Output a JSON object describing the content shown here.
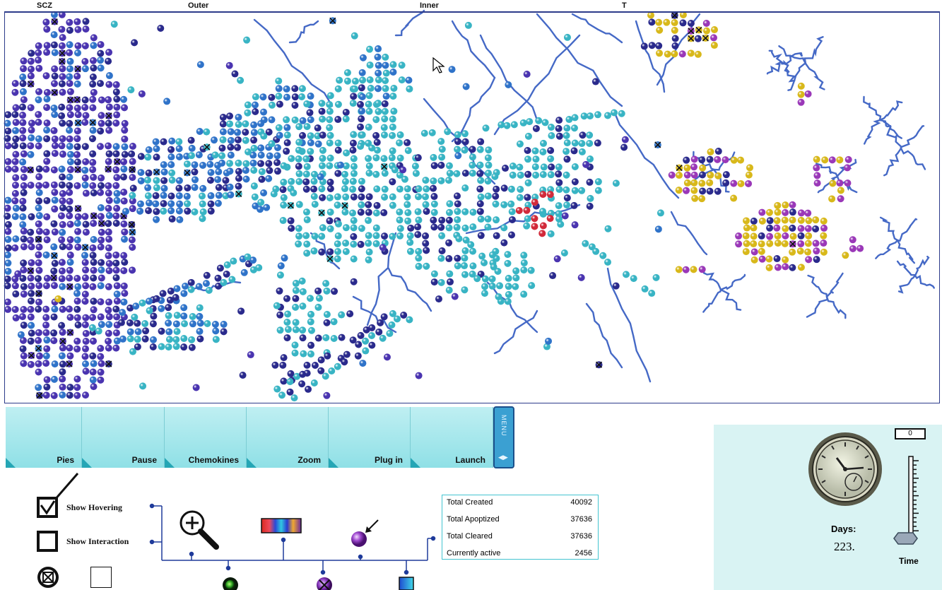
{
  "zones": {
    "scz": "SCZ",
    "outer": "Outer",
    "inner": "Inner",
    "t": "T"
  },
  "toolbar": {
    "buttons": [
      "Pies",
      "Pause",
      "Chemokines",
      "Zoom",
      "Plug in",
      "Launch"
    ],
    "menu_label": "MENU",
    "menu_arrows": "◀▶"
  },
  "options": {
    "show_hovering": "Show Hovering",
    "show_interaction": "Show Interaction"
  },
  "stats": {
    "rows": [
      {
        "label": "Total Created",
        "value": "40092"
      },
      {
        "label": "Total Apoptized",
        "value": "37636"
      },
      {
        "label": "Total Cleared",
        "value": "37636"
      },
      {
        "label": "Currently active",
        "value": "2456"
      }
    ]
  },
  "clock": {
    "days_label": "Days:",
    "days_value": "223.",
    "time_label": "Time",
    "time_readout": "0"
  },
  "icons": [
    "zoom-in-icon",
    "color-scale-icon",
    "probe-sphere-icon",
    "cursor-icon",
    "live-cell-icon",
    "apoptotic-cell-icon",
    "gradient-swatch-icon",
    "clock-icon",
    "thermometer-icon"
  ],
  "colors": {
    "cyan_cell": "#38b4c4",
    "navy_cell": "#2a2a8c",
    "violet_cell": "#4a34b0",
    "blue_cell": "#2f73c9",
    "yellow_cell": "#d8b81a",
    "purple_cell": "#9a38b8",
    "red_cell": "#d22a3a",
    "vessel": "#4569c6",
    "panel": "#a8e8ec"
  }
}
